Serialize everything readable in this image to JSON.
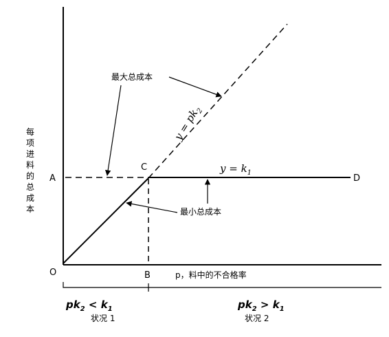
{
  "diagram": {
    "y_axis_label": [
      "每",
      "项",
      "进",
      "料",
      "的",
      "总",
      "成",
      "本"
    ],
    "x_axis_label": "p，料中的不合格率",
    "point_labels": {
      "origin": "O",
      "A": "A",
      "B": "B",
      "C": "C",
      "D": "D"
    },
    "line_labels": {
      "pk2": "y = pk",
      "pk2_sub": "2",
      "k1": "y = k",
      "k1_sub": "1"
    },
    "annotations": {
      "max_total_cost": "最大总成本",
      "min_total_cost": "最小总成本"
    },
    "regions": {
      "left_condition": "pk",
      "left_condition_sub": "2",
      "left_condition_rest": " < k",
      "left_condition_sub2": "1",
      "left_name": "状况 1",
      "right_condition": "pk",
      "right_condition_sub": "2",
      "right_condition_rest": " > k",
      "right_condition_sub2": "1",
      "right_name": "状况 2"
    }
  }
}
